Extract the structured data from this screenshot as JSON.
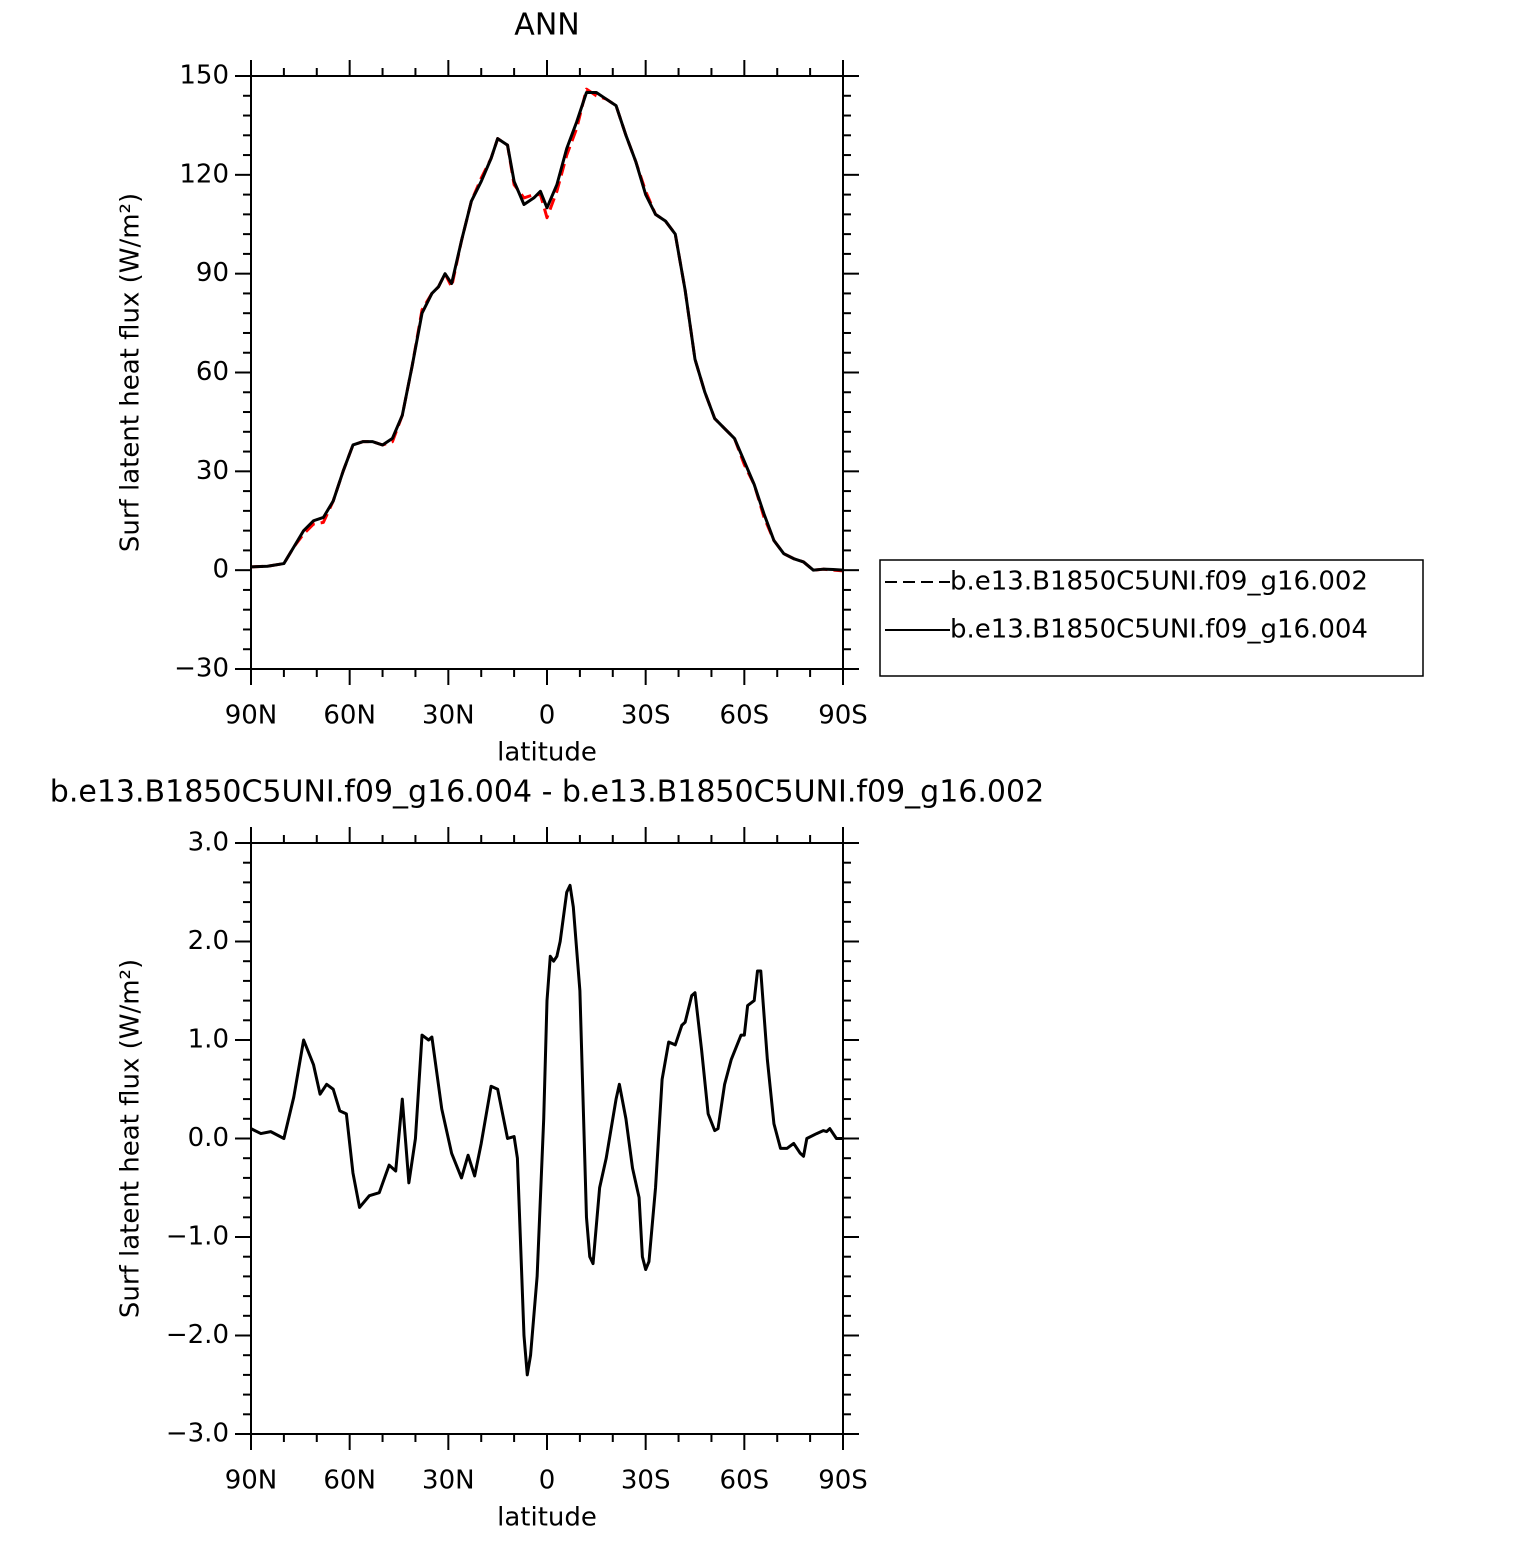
{
  "chart_data": [
    {
      "type": "line",
      "title": "ANN",
      "x_label": "latitude",
      "y_label": "Surf latent heat flux (W/m²)",
      "xlim": [
        90,
        -90
      ],
      "xticks": [
        {
          "value": 90,
          "label": "90N"
        },
        {
          "value": 60,
          "label": "60N"
        },
        {
          "value": 30,
          "label": "30N"
        },
        0,
        {
          "value": -30,
          "label": "30S"
        },
        {
          "value": -60,
          "label": "60S"
        },
        {
          "value": -90,
          "label": "90S"
        }
      ],
      "ylim": [
        -30,
        150
      ],
      "yticks": [
        {
          "value": -30,
          "label": "−30"
        },
        0,
        30,
        60,
        90,
        120,
        150
      ],
      "legend": "right",
      "x": [
        90,
        85,
        80,
        77,
        74,
        71,
        68,
        65,
        62,
        59,
        56,
        53,
        50,
        47,
        44,
        41,
        38,
        35,
        33,
        31,
        29,
        26,
        23,
        20,
        17,
        15,
        12,
        10,
        7,
        4,
        2,
        0,
        -3,
        -6,
        -9,
        -12,
        -15,
        -18,
        -21,
        -24,
        -27,
        -30,
        -33,
        -36,
        -39,
        -42,
        -45,
        -48,
        -51,
        -54,
        -57,
        -60,
        -63,
        -66,
        -69,
        -72,
        -75,
        -78,
        -81,
        -84,
        -87,
        -90
      ],
      "series": [
        {
          "name": "b.e13.B1850C5UNI.f09_g16.002",
          "color": "#ff0000",
          "line_style": "dashed",
          "values": [
            1,
            1.2,
            2,
            7,
            11,
            14,
            14.5,
            21,
            30,
            38,
            39,
            39,
            38,
            39,
            47,
            62,
            79,
            84,
            86,
            90,
            86,
            100,
            112,
            119,
            125,
            131,
            129,
            117,
            113,
            114,
            114,
            107,
            115,
            126,
            134,
            146,
            144,
            143,
            141,
            132,
            124,
            115,
            108,
            106,
            102,
            85,
            64,
            54,
            46,
            43,
            40,
            32,
            26,
            16,
            9,
            5,
            3.5,
            2.5,
            0,
            0.3,
            0,
            -0.2
          ]
        },
        {
          "name": "b.e13.B1850C5UNI.f09_g16.004",
          "color": "#000000",
          "line_style": "solid",
          "values": [
            1,
            1.2,
            2,
            7,
            12,
            15,
            16,
            21,
            30,
            38,
            39,
            39,
            38,
            40,
            47,
            62,
            78,
            84,
            86,
            90,
            87,
            100,
            112,
            118,
            125,
            131,
            129,
            118,
            111,
            113,
            115,
            110,
            117,
            128,
            136,
            145,
            145,
            143,
            141,
            132,
            124,
            114,
            108,
            106,
            102,
            85,
            64,
            54,
            46,
            43,
            40,
            33,
            26,
            17,
            9,
            5,
            3.5,
            2.5,
            0,
            0.3,
            0.2,
            0
          ]
        }
      ]
    },
    {
      "type": "line",
      "title": "b.e13.B1850C5UNI.f09_g16.004 - b.e13.B1850C5UNI.f09_g16.002",
      "x_label": "latitude",
      "y_label": "Surf latent heat flux (W/m²)",
      "xlim": [
        90,
        -90
      ],
      "xticks": [
        {
          "value": 90,
          "label": "90N"
        },
        {
          "value": 60,
          "label": "60N"
        },
        {
          "value": 30,
          "label": "30N"
        },
        0,
        {
          "value": -30,
          "label": "30S"
        },
        {
          "value": -60,
          "label": "60S"
        },
        {
          "value": -90,
          "label": "90S"
        }
      ],
      "ylim": [
        -3,
        3
      ],
      "yticks": [
        {
          "value": -3,
          "label": "−3.0"
        },
        {
          "value": -2,
          "label": "−2.0"
        },
        {
          "value": -1,
          "label": "−1.0"
        },
        {
          "value": 0,
          "label": "0.0"
        },
        {
          "value": 1,
          "label": "1.0"
        },
        {
          "value": 2,
          "label": "2.0"
        },
        {
          "value": 3,
          "label": "3.0"
        }
      ],
      "color": "#000000",
      "x": [
        90,
        87,
        84,
        80,
        77,
        74,
        71,
        69,
        67,
        65,
        63,
        61,
        59,
        57,
        54,
        51,
        48,
        46,
        44,
        42,
        40,
        38,
        36,
        35,
        32,
        29,
        26,
        24,
        22,
        20,
        17,
        15,
        12,
        10,
        9,
        7,
        6,
        5,
        3,
        1,
        0,
        -1,
        -2,
        -3,
        -4,
        -6,
        -7,
        -8,
        -10,
        -12,
        -13,
        -14,
        -16,
        -18,
        -21,
        -22,
        -24,
        -26,
        -28,
        -29,
        -30,
        -31,
        -33,
        -35,
        -37,
        -39,
        -41,
        -42,
        -44,
        -45,
        -47,
        -49,
        -51,
        -52,
        -54,
        -56,
        -59,
        -60,
        -61,
        -63,
        -64,
        -65,
        -67,
        -69,
        -71,
        -73,
        -75,
        -77,
        -78,
        -79,
        -82,
        -84,
        -85,
        -86,
        -88,
        -90
      ],
      "values": [
        0.1,
        0.05,
        0.07,
        0.0,
        0.42,
        1.0,
        0.75,
        0.45,
        0.55,
        0.5,
        0.28,
        0.25,
        -0.35,
        -0.7,
        -0.58,
        -0.55,
        -0.27,
        -0.33,
        0.4,
        -0.45,
        0.0,
        1.05,
        1.0,
        1.03,
        0.3,
        -0.15,
        -0.4,
        -0.17,
        -0.38,
        -0.05,
        0.53,
        0.5,
        0.0,
        0.02,
        -0.2,
        -2.0,
        -2.4,
        -2.2,
        -1.4,
        0.2,
        1.4,
        1.85,
        1.8,
        1.85,
        2.0,
        2.5,
        2.57,
        2.35,
        1.5,
        -0.8,
        -1.2,
        -1.27,
        -0.5,
        -0.2,
        0.4,
        0.55,
        0.2,
        -0.3,
        -0.6,
        -1.2,
        -1.33,
        -1.25,
        -0.5,
        0.6,
        0.98,
        0.95,
        1.15,
        1.18,
        1.45,
        1.48,
        0.9,
        0.25,
        0.08,
        0.1,
        0.55,
        0.8,
        1.05,
        1.05,
        1.35,
        1.4,
        1.7,
        1.7,
        0.8,
        0.15,
        -0.1,
        -0.1,
        -0.05,
        -0.15,
        -0.18,
        0.0,
        0.05,
        0.08,
        0.07,
        0.1,
        0.0,
        0.0
      ]
    }
  ]
}
